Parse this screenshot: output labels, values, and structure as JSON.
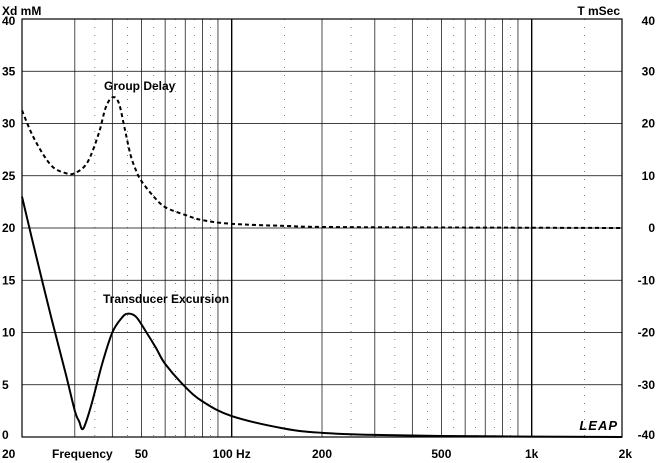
{
  "chart_data": {
    "type": "line",
    "left_axis_title": "Xd mM",
    "right_axis_title": "T mSec",
    "x_scale": "log",
    "xlim": [
      20,
      2000
    ],
    "x_ticks": [
      {
        "value": 20,
        "label": "20"
      },
      {
        "value": 50,
        "label": "50"
      },
      {
        "value": 100,
        "label": "100 Hz"
      },
      {
        "value": 200,
        "label": "200"
      },
      {
        "value": 500,
        "label": "500"
      },
      {
        "value": 1000,
        "label": "1k"
      },
      {
        "value": 2000,
        "label": "2k"
      }
    ],
    "x_axis_label": "Frequency",
    "left_ylim": [
      0,
      40
    ],
    "left_ticks": [
      "0",
      "5",
      "10",
      "15",
      "20",
      "25",
      "30",
      "35",
      "40"
    ],
    "right_ylim": [
      -40,
      40
    ],
    "right_ticks": [
      "-40",
      "-30",
      "-20",
      "-10",
      "0",
      "10",
      "20",
      "30",
      "40"
    ],
    "grid": true,
    "series": [
      {
        "name": "Group Delay",
        "axis": "right",
        "style": "dashed",
        "color": "#000000",
        "x": [
          20,
          22,
          25,
          28,
          30,
          33,
          36,
          38,
          40,
          42,
          44,
          46,
          48,
          50,
          55,
          60,
          70,
          80,
          100,
          150,
          200,
          500,
          1000,
          2000
        ],
        "y": [
          22.5,
          17,
          12,
          10.5,
          10.5,
          12.5,
          18,
          23,
          25,
          24,
          19,
          14,
          11,
          9,
          6,
          4,
          2.5,
          1.5,
          0.8,
          0.4,
          0.2,
          0.1,
          0.05,
          0
        ]
      },
      {
        "name": "Transducer Excursion",
        "axis": "left",
        "style": "solid",
        "color": "#000000",
        "x": [
          20,
          22,
          25,
          28,
          30,
          31,
          32,
          34,
          37,
          40,
          43,
          45,
          48,
          52,
          56,
          60,
          70,
          80,
          100,
          150,
          200,
          300,
          500,
          1000,
          2000
        ],
        "y": [
          23,
          18,
          11.5,
          6,
          2.5,
          1.5,
          0.8,
          3,
          7,
          10,
          11.4,
          11.8,
          11.5,
          10,
          8.5,
          7,
          4.8,
          3.4,
          2,
          0.8,
          0.4,
          0.2,
          0.1,
          0.04,
          0
        ]
      }
    ],
    "annotations": [
      {
        "text": "Group Delay"
      },
      {
        "text": "Transducer Excursion"
      }
    ],
    "logo_text": "LEAP"
  }
}
